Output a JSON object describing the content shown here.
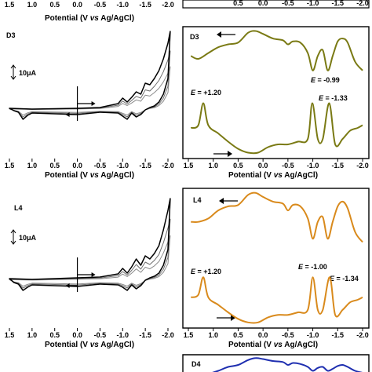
{
  "chart_data": [
    {
      "type": "line",
      "panel": "D3",
      "title": "",
      "xlabel_parts": [
        "Potential (V ",
        "vs",
        " Ag/AgCl)"
      ],
      "ylabel": "",
      "xlim": [
        1.5,
        -2.0
      ],
      "xticks": [
        "1.5",
        "1.0",
        "0.5",
        "0.0",
        "-0.5",
        "-1.0",
        "-1.5",
        "-2.0"
      ],
      "scale_bar": "10μA",
      "series": [
        {
          "x": [
            1.5,
            1.0,
            0.5,
            0.0,
            -0.5,
            -0.9,
            -1.0,
            -1.1,
            -1.2,
            -1.3,
            -1.4,
            -1.5,
            -1.6,
            -1.7,
            -1.8,
            -1.9,
            -2.0,
            -2.05,
            -2.0,
            -1.9,
            -1.8,
            -1.7,
            -1.6,
            -1.5,
            -1.4,
            -1.3,
            -1.2,
            -1.1,
            -1.0,
            -0.9,
            -0.5,
            0.0,
            0.5,
            1.0,
            1.1,
            1.2,
            1.3,
            1.4,
            1.5
          ],
          "y": [
            0.2,
            0.1,
            0.15,
            0.2,
            0.3,
            0.8,
            1.5,
            1.0,
            1.6,
            2.3,
            2.0,
            3.4,
            3.2,
            4.0,
            5.0,
            6.5,
            8.5,
            10.0,
            4.0,
            2.0,
            1.0,
            0.5,
            0.3,
            0.0,
            -0.6,
            -0.9,
            -0.4,
            -1.2,
            -0.8,
            -0.4,
            -0.3,
            -0.6,
            -0.5,
            -0.4,
            -0.7,
            -1.2,
            -0.3,
            -0.1,
            0.2
          ]
        }
      ]
    },
    {
      "type": "line",
      "panel": "D3",
      "title": "",
      "xlabel_parts": [
        "Potential (V ",
        "vs",
        " Ag/AgCl)"
      ],
      "xlim": [
        1.5,
        -2.0
      ],
      "xticks": [
        "1.5",
        "1.0",
        "0.5",
        "0.0",
        "-0.5",
        "-1.0",
        "-1.5",
        "-2.0"
      ],
      "color": "#7a7a14",
      "annotations": [
        {
          "label": "E",
          "value": " = +1.20"
        },
        {
          "label": "E",
          "value": " = -0.99"
        },
        {
          "label": "E",
          "value": " = -1.33"
        }
      ],
      "series": [
        {
          "name": "upper",
          "x": [
            1.45,
            1.3,
            1.1,
            0.9,
            0.7,
            0.5,
            0.3,
            0.15,
            0.0,
            -0.2,
            -0.4,
            -0.5,
            -0.6,
            -0.75,
            -0.9,
            -1.0,
            -1.1,
            -1.2,
            -1.3,
            -1.4,
            -1.5,
            -1.6,
            -1.7,
            -1.85,
            -2.0
          ],
          "y": [
            0.55,
            0.5,
            0.6,
            0.7,
            0.75,
            0.78,
            0.95,
            0.98,
            0.93,
            0.85,
            0.82,
            0.75,
            0.8,
            0.78,
            0.6,
            0.3,
            0.55,
            0.65,
            0.3,
            0.55,
            0.8,
            0.85,
            0.78,
            0.45,
            0.3
          ]
        },
        {
          "name": "lower",
          "x": [
            1.45,
            1.3,
            1.2,
            1.1,
            0.9,
            0.7,
            0.5,
            0.3,
            0.1,
            -0.1,
            -0.3,
            -0.5,
            -0.7,
            -0.9,
            -0.99,
            -1.1,
            -1.2,
            -1.33,
            -1.45,
            -1.6,
            -1.75,
            -1.9,
            -2.0
          ],
          "y": [
            0.5,
            0.55,
            0.95,
            0.55,
            0.4,
            0.25,
            0.12,
            0.05,
            0.05,
            0.15,
            0.2,
            0.2,
            0.25,
            0.3,
            0.95,
            0.3,
            0.3,
            0.95,
            0.2,
            0.3,
            0.45,
            0.5,
            0.55
          ]
        }
      ]
    },
    {
      "type": "line",
      "panel": "L4",
      "title": "",
      "xlabel_parts": [
        "Potential (V ",
        "vs",
        " Ag/AgCl)"
      ],
      "xlim": [
        1.5,
        -2.0
      ],
      "xticks": [
        "1.5",
        "1.0",
        "0.5",
        "0.0",
        "-0.5",
        "-1.0",
        "-1.5",
        "-2.0"
      ],
      "scale_bar": "10μA",
      "series": [
        {
          "x": [
            1.5,
            1.0,
            0.5,
            0.0,
            -0.5,
            -0.9,
            -1.0,
            -1.1,
            -1.2,
            -1.3,
            -1.4,
            -1.5,
            -1.6,
            -1.7,
            -1.8,
            -1.9,
            -2.0,
            -2.05,
            -2.0,
            -1.9,
            -1.8,
            -1.7,
            -1.6,
            -1.5,
            -1.4,
            -1.3,
            -1.2,
            -1.1,
            -1.0,
            -0.9,
            -0.5,
            0.0,
            0.5,
            1.0,
            1.1,
            1.2,
            1.3,
            1.4,
            1.5
          ],
          "y": [
            0.3,
            0.2,
            0.3,
            0.4,
            0.5,
            0.9,
            1.6,
            1.0,
            1.8,
            2.8,
            2.0,
            3.2,
            2.8,
            3.5,
            4.5,
            6.5,
            9.0,
            10.5,
            4.0,
            2.0,
            1.0,
            0.6,
            0.4,
            0.1,
            -0.6,
            -1.0,
            -0.5,
            -1.2,
            -0.8,
            -0.5,
            -0.4,
            -0.7,
            -0.6,
            -0.5,
            -0.8,
            -1.2,
            -0.4,
            -0.2,
            0.3
          ]
        }
      ]
    },
    {
      "type": "line",
      "panel": "L4",
      "title": "",
      "xlabel_parts": [
        "Potential (V ",
        "vs",
        " Ag/AgCl)"
      ],
      "xlim": [
        1.5,
        -2.0
      ],
      "xticks": [
        "1.5",
        "1.0",
        "0.5",
        "0.0",
        "-0.5",
        "-1.0",
        "-1.5",
        "-2.0"
      ],
      "color": "#d98a1c",
      "annotations": [
        {
          "label": "E",
          "value": " = +1.20"
        },
        {
          "label": "E",
          "value": " = -1.00"
        },
        {
          "label": "E",
          "value": " = -1.34"
        }
      ],
      "series": [
        {
          "name": "upper",
          "x": [
            1.45,
            1.3,
            1.1,
            0.9,
            0.7,
            0.5,
            0.3,
            0.15,
            0.0,
            -0.2,
            -0.4,
            -0.5,
            -0.6,
            -0.75,
            -0.9,
            -1.0,
            -1.1,
            -1.2,
            -1.3,
            -1.4,
            -1.5,
            -1.6,
            -1.7,
            -1.85,
            -2.0
          ],
          "y": [
            0.55,
            0.55,
            0.6,
            0.72,
            0.78,
            0.8,
            0.95,
            0.98,
            0.92,
            0.85,
            0.82,
            0.72,
            0.8,
            0.78,
            0.6,
            0.3,
            0.55,
            0.62,
            0.3,
            0.55,
            0.78,
            0.85,
            0.75,
            0.4,
            0.25
          ]
        },
        {
          "name": "lower",
          "x": [
            1.45,
            1.3,
            1.2,
            1.1,
            0.9,
            0.7,
            0.5,
            0.3,
            0.1,
            -0.1,
            -0.3,
            -0.5,
            -0.7,
            -0.9,
            -1.0,
            -1.1,
            -1.2,
            -1.34,
            -1.45,
            -1.6,
            -1.75,
            -1.9,
            -2.0
          ],
          "y": [
            0.55,
            0.6,
            0.95,
            0.55,
            0.4,
            0.25,
            0.12,
            0.05,
            0.05,
            0.15,
            0.2,
            0.2,
            0.25,
            0.3,
            0.95,
            0.3,
            0.3,
            0.95,
            0.2,
            0.3,
            0.45,
            0.5,
            0.55
          ]
        }
      ]
    },
    {
      "type": "line",
      "panel": "D4",
      "title": "",
      "xlim": [
        1.5,
        -2.0
      ],
      "color": "#1f2fb0",
      "series": [
        {
          "name": "upper",
          "x": [
            1.45,
            1.3,
            1.1,
            0.9,
            0.7,
            0.5,
            0.3,
            0.15,
            0.0,
            -0.2,
            -0.4,
            -0.5,
            -0.6,
            -0.75,
            -0.9,
            -1.0,
            -1.1,
            -1.2,
            -1.3,
            -1.4,
            -1.5,
            -1.6,
            -1.7,
            -1.85,
            -2.0
          ],
          "y": [
            0.1,
            0.1,
            0.15,
            0.3,
            0.5,
            0.6,
            0.85,
            0.95,
            0.9,
            0.8,
            0.75,
            0.6,
            0.7,
            0.65,
            0.5,
            0.3,
            0.45,
            0.5,
            0.3,
            0.4,
            0.55,
            0.6,
            0.5,
            0.3,
            0.2
          ]
        }
      ]
    }
  ],
  "panels": {
    "top_strip_ticks": [
      "1.5",
      "1.0",
      "0.5",
      "0.0",
      "-0.5",
      "-1.0",
      "-1.5",
      "-2.0"
    ],
    "top_strip_ticks_right": [
      "0.5",
      "0.0",
      "-0.5",
      "-1.0",
      "-1.5",
      "-2.0"
    ]
  }
}
